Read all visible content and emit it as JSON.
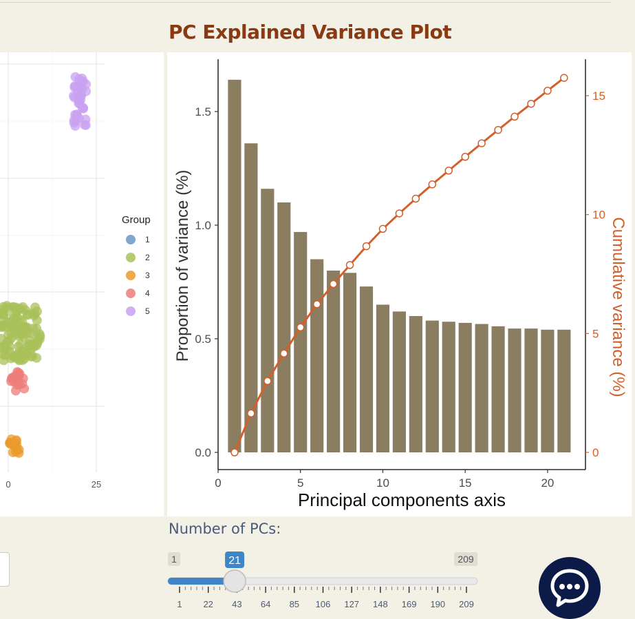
{
  "page": {
    "title": "PC Explained Variance Plot",
    "pcs_label": "Number of PCs:"
  },
  "slider": {
    "min": 1,
    "max": 209,
    "value": 21,
    "min_label": "1",
    "max_label": "209",
    "value_label": "21",
    "ticks": [
      "1",
      "22",
      "43",
      "64",
      "85",
      "106",
      "127",
      "148",
      "169",
      "190",
      "209"
    ]
  },
  "scatter": {
    "x_tick_labels": [
      "0",
      "25"
    ],
    "legend_title": "Group",
    "groups": [
      {
        "label": "1",
        "color": "#6b98c8"
      },
      {
        "label": "2",
        "color": "#a9c05a"
      },
      {
        "label": "3",
        "color": "#eb9a2c"
      },
      {
        "label": "4",
        "color": "#ec7e7a"
      },
      {
        "label": "5",
        "color": "#c8a2f2"
      }
    ]
  },
  "chart_data": {
    "type": "bar",
    "x": [
      1,
      2,
      3,
      4,
      5,
      6,
      7,
      8,
      9,
      10,
      11,
      12,
      13,
      14,
      15,
      16,
      17,
      18,
      19,
      20,
      21
    ],
    "series": [
      {
        "name": "Proportion of variance (%)",
        "type": "bar",
        "axis": "left",
        "color": "#8b7d5f",
        "values": [
          1.64,
          1.36,
          1.16,
          1.1,
          0.97,
          0.85,
          0.8,
          0.79,
          0.73,
          0.65,
          0.62,
          0.6,
          0.58,
          0.575,
          0.57,
          0.565,
          0.555,
          0.545,
          0.545,
          0.54,
          0.54
        ]
      },
      {
        "name": "Cumulative variance (%)",
        "type": "line",
        "axis": "right",
        "color": "#d35f2b",
        "values": [
          0,
          1.64,
          3.0,
          4.16,
          5.26,
          6.23,
          7.08,
          7.88,
          8.67,
          9.4,
          10.05,
          10.67,
          11.27,
          11.85,
          12.43,
          13.0,
          13.56,
          14.12,
          14.66,
          15.21,
          15.75
        ]
      }
    ],
    "xlabel": "Principal components axis",
    "ylabel": "Proportion of variance (%)",
    "y2label": "Cumulative variance (%)",
    "xlim": [
      0,
      22.3
    ],
    "ylim": [
      0,
      1.72
    ],
    "y2lim": [
      0,
      16.2
    ],
    "x_ticks": [
      0,
      5,
      10,
      15,
      20
    ],
    "y_ticks": [
      0.0,
      0.5,
      1.0,
      1.5
    ],
    "y_tick_labels": [
      "0.0",
      "0.5",
      "1.0",
      "1.5"
    ],
    "y2_ticks": [
      0,
      5,
      10,
      15
    ],
    "grid": false
  }
}
